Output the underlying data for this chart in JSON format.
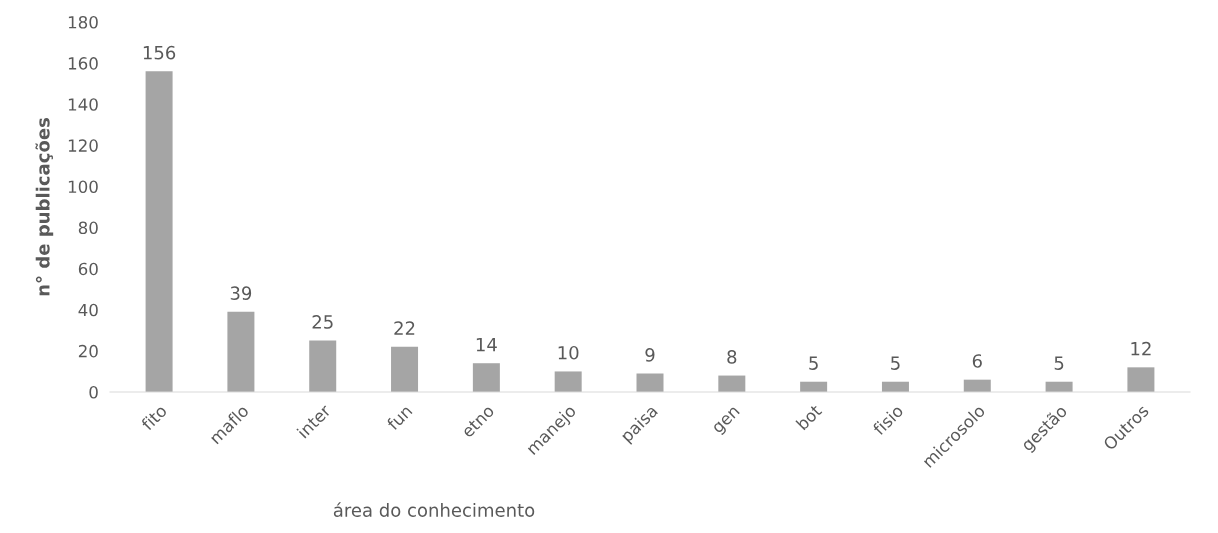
{
  "chart_data": {
    "type": "bar",
    "xlabel": "área do conhecimento",
    "ylabel": "n° de publicações",
    "categories": [
      "fito",
      "maflo",
      "inter",
      "fun",
      "etno",
      "manejo",
      "paisa",
      "gen",
      "bot",
      "fisio",
      "microsolo",
      "gestão",
      "Outros"
    ],
    "values": [
      156,
      39,
      25,
      22,
      14,
      10,
      9,
      8,
      5,
      5,
      6,
      5,
      12
    ],
    "color": "#a5a5a5",
    "ylim": [
      0,
      180
    ],
    "yticks": [
      0,
      20,
      40,
      60,
      80,
      100,
      120,
      140,
      160,
      180
    ],
    "data_labels": true,
    "grid": false,
    "legend": false
  }
}
